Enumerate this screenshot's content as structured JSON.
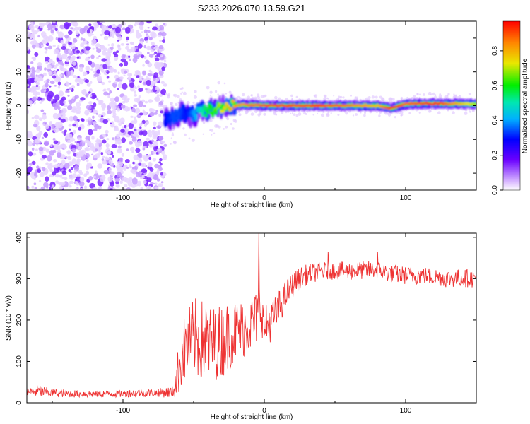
{
  "title": "S233.2026.070.13.59.G21",
  "chart_data": [
    {
      "type": "heatmap",
      "title": "S233.2026.070.13.59.G21",
      "xlabel": "Height of straight line (km)",
      "ylabel": "Frequency (Hz)",
      "xlim": [
        -168,
        150
      ],
      "ylim": [
        -25,
        25
      ],
      "xticks": [
        -100,
        0,
        100
      ],
      "xtick_labels": [
        "-100",
        "0",
        "100"
      ],
      "yticks": [
        -20,
        -10,
        0,
        10,
        20
      ],
      "ytick_labels": [
        "-20",
        "-10",
        "0",
        "10",
        "20"
      ],
      "noise_region_km": [
        -168,
        -70
      ],
      "ridge": {
        "x": [
          -70,
          -65,
          -60,
          -55,
          -50,
          -45,
          -40,
          -35,
          -30,
          -25,
          -20,
          -15,
          -10,
          -5,
          0,
          10,
          20,
          40,
          60,
          80,
          90,
          100,
          120,
          150
        ],
        "freq": [
          -4,
          -3.5,
          -2.5,
          -2.5,
          -3,
          -1.5,
          -1.5,
          -1,
          -0.5,
          0,
          0,
          0.3,
          0.2,
          0.1,
          0,
          0,
          0,
          0,
          0,
          0,
          -0.8,
          0.5,
          0.6,
          0.5
        ],
        "amplitude": [
          0.3,
          0.35,
          0.35,
          0.3,
          0.4,
          0.5,
          0.6,
          0.65,
          0.75,
          0.8,
          0.85,
          0.85,
          0.9,
          0.9,
          0.95,
          0.95,
          0.95,
          0.95,
          0.9,
          0.8,
          1.0,
          0.9,
          1.0,
          0.7
        ]
      },
      "colorbar": {
        "label": "Normalized spectral amplitude",
        "ticks": [
          0.0,
          0.2,
          0.4,
          0.6,
          0.8
        ],
        "tick_labels": [
          "0.0",
          "0.2",
          "0.4",
          "0.6",
          "0.8"
        ],
        "range": [
          0,
          0.97
        ]
      }
    },
    {
      "type": "line",
      "xlabel": "Height of straight line (km)",
      "ylabel": "SNR (10 * v/v)",
      "xlim": [
        -168,
        150
      ],
      "ylim": [
        0,
        410
      ],
      "xticks": [
        -100,
        0,
        100
      ],
      "xtick_labels": [
        "-100",
        "0",
        "100"
      ],
      "yticks": [
        0,
        100,
        200,
        300,
        400
      ],
      "ytick_labels": [
        "0",
        "100",
        "200",
        "300",
        "400"
      ],
      "series": [
        {
          "name": "SNR",
          "color": "#ee3333",
          "x": [
            -168,
            -160,
            -150,
            -140,
            -130,
            -120,
            -110,
            -100,
            -90,
            -80,
            -70,
            -65,
            -62,
            -58,
            -54,
            -50,
            -46,
            -42,
            -38,
            -34,
            -30,
            -26,
            -22,
            -18,
            -14,
            -10,
            -6,
            -4,
            -2,
            0,
            4,
            8,
            12,
            16,
            20,
            25,
            30,
            40,
            50,
            60,
            70,
            80,
            90,
            100,
            110,
            120,
            130,
            140,
            150
          ],
          "values": [
            25,
            28,
            24,
            22,
            22,
            21,
            22,
            22,
            24,
            24,
            25,
            26,
            60,
            120,
            140,
            160,
            150,
            150,
            140,
            145,
            150,
            160,
            170,
            175,
            180,
            190,
            200,
            230,
            230,
            180,
            195,
            215,
            240,
            265,
            285,
            300,
            310,
            318,
            320,
            318,
            320,
            322,
            312,
            308,
            308,
            305,
            300,
            302,
            300
          ],
          "spread": [
            10,
            15,
            10,
            9,
            9,
            8,
            9,
            9,
            10,
            10,
            12,
            15,
            50,
            80,
            90,
            95,
            100,
            100,
            95,
            90,
            90,
            85,
            80,
            75,
            70,
            70,
            70,
            70,
            60,
            55,
            50,
            45,
            40,
            35,
            30,
            28,
            25,
            22,
            22,
            22,
            22,
            22,
            22,
            22,
            22,
            22,
            22,
            22,
            22
          ],
          "spikes": [
            {
              "x": -4,
              "value": 410
            },
            {
              "x": 45,
              "value": 365
            },
            {
              "x": 80,
              "value": 365
            }
          ]
        }
      ]
    }
  ]
}
